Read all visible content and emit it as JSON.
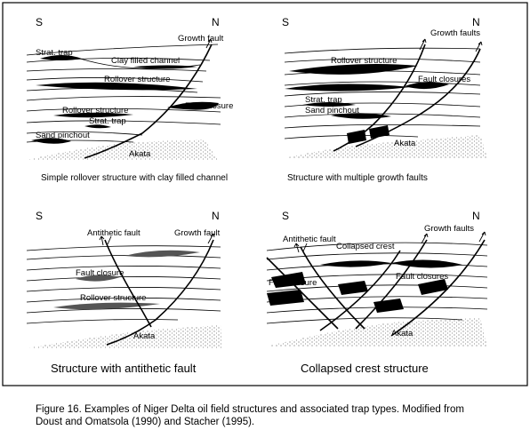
{
  "panels": [
    {
      "dir_left": "S",
      "dir_right": "N",
      "labels": {
        "growth_fault": "Growth fault",
        "strat_trap_top": "Strat. trap",
        "clay_channel": "Clay filled channel",
        "rollover_top": "Rollover structure",
        "fault_closure": "Fault closure",
        "rollover_bottom": "Rollover structure",
        "strat_trap_bottom": "Strat. trap",
        "sand_pinchout": "Sand pinchout",
        "akata": "Akata"
      },
      "caption": "Simple rollover structure with clay filled channel"
    },
    {
      "dir_left": "S",
      "dir_right": "N",
      "labels": {
        "growth_faults": "Growth faults",
        "rollover": "Rollover structure",
        "fault_closures": "Fault closures",
        "strat_trap": "Strat. trap",
        "sand_pinchout": "Sand pinchout",
        "akata": "Akata"
      },
      "caption": "Structure with multiple growth faults"
    },
    {
      "dir_left": "S",
      "dir_right": "N",
      "labels": {
        "antithetic_fault": "Antithetic fault",
        "growth_fault": "Growth fault",
        "fault_closure": "Fault closure",
        "rollover": "Rollover structure",
        "akata": "Akata"
      },
      "caption": "Structure with antithetic fault"
    },
    {
      "dir_left": "S",
      "dir_right": "N",
      "labels": {
        "antithetic_fault": "Antithetic fault",
        "collapsed_crest": "Collapsed crest",
        "growth_faults": "Growth faults",
        "fault_closure_left": "Fault closure",
        "fault_closures_right": "Fault closures",
        "akata": "Akata"
      },
      "caption": "Collapsed crest structure"
    }
  ],
  "figure_caption": {
    "line1": "Figure 16. Examples of Niger Delta oil field structures and associated trap types. Modified from",
    "line2": "Doust and Omatsola  (1990) and Stacher (1995)."
  }
}
